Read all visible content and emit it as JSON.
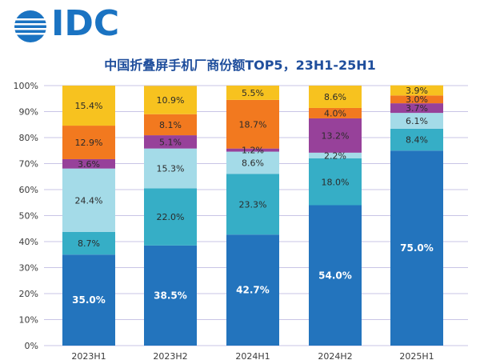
{
  "brand": {
    "name": "IDC"
  },
  "colors": {
    "seg1": "#2374bd",
    "seg2": "#36aec6",
    "seg3": "#a4dbe8",
    "seg4": "#97419a",
    "seg5": "#f2791f",
    "seg6": "#f7c21f",
    "grid": "#c9c5e6",
    "axis": "#3a3a3a"
  },
  "chart_data": {
    "type": "bar",
    "stacked": true,
    "title": "中国折叠屏手机厂商份额TOP5，23H1-25H1",
    "categories": [
      "2023H1",
      "2023H2",
      "2024H1",
      "2024H2",
      "2025H1"
    ],
    "ylim": [
      0,
      100
    ],
    "yticks": [
      "0%",
      "10%",
      "20%",
      "30%",
      "40%",
      "50%",
      "60%",
      "70%",
      "80%",
      "90%",
      "100%"
    ],
    "grid": true,
    "series": [
      {
        "values": [
          35.0,
          38.5,
          42.7,
          54.0,
          75.0
        ],
        "labels": [
          "35.0%",
          "38.5%",
          "42.7%",
          "54.0%",
          "75.0%"
        ]
      },
      {
        "values": [
          8.7,
          22.0,
          23.3,
          18.0,
          8.4
        ],
        "labels": [
          "8.7%",
          "22.0%",
          "23.3%",
          "18.0%",
          "8.4%"
        ]
      },
      {
        "values": [
          24.4,
          15.3,
          8.6,
          2.2,
          6.1
        ],
        "labels": [
          "24.4%",
          "15.3%",
          "8.6%",
          "2.2%",
          "6.1%"
        ]
      },
      {
        "values": [
          3.6,
          5.1,
          1.2,
          13.2,
          3.7
        ],
        "labels": [
          "3.6%",
          "5.1%",
          "1.2%",
          "13.2%",
          "3.7%"
        ]
      },
      {
        "values": [
          12.9,
          8.1,
          18.7,
          4.0,
          3.0
        ],
        "labels": [
          "12.9%",
          "8.1%",
          "18.7%",
          "4.0%",
          "3.0%"
        ]
      },
      {
        "values": [
          15.4,
          10.9,
          5.5,
          8.6,
          3.9
        ],
        "labels": [
          "15.4%",
          "10.9%",
          "5.5%",
          "8.6%",
          "3.9%"
        ]
      }
    ]
  }
}
